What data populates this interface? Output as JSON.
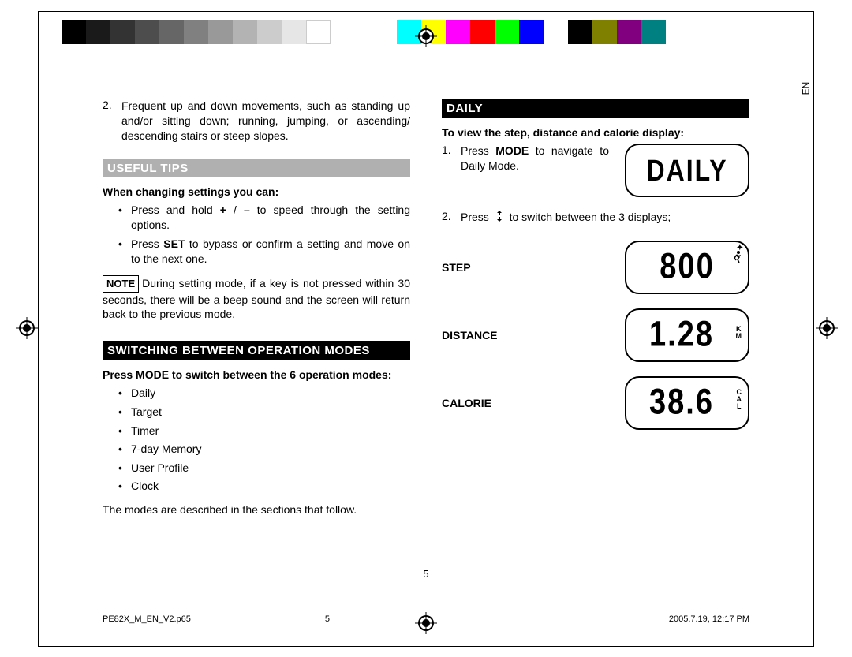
{
  "colorBar": {
    "leftGapWidth": 78,
    "swatchWidth": 31,
    "midGapWidth": 84,
    "rightFillColor": "#ffffff",
    "leftColors": [
      "#000000",
      "#1a1a1a",
      "#333333",
      "#4d4d4d",
      "#666666",
      "#808080",
      "#999999",
      "#b3b3b3",
      "#cccccc",
      "#e6e6e6",
      "#ffffff"
    ],
    "rightColors": [
      "#00ffff",
      "#ffff00",
      "#ff00ff",
      "#ff0000",
      "#00ff00",
      "#0000ff",
      "#ffffff",
      "#000000",
      "#808000",
      "#800080",
      "#008080"
    ]
  },
  "langLabel": "EN",
  "leftColumn": {
    "item2": {
      "num": "2.",
      "text": "Frequent up and down movements, such as standing up and/or sitting down; running, jumping, or ascending/ descending stairs or steep slopes."
    },
    "usefulTips": {
      "header": "USEFUL TIPS",
      "subhead": "When changing settings you can:",
      "bullets": [
        "Press and hold + / – to speed through the setting options.",
        "Press SET to bypass or confirm a setting and move on to the next one."
      ],
      "noteLabel": "NOTE",
      "noteText": "During setting mode, if a key is not pressed within 30 seconds, there will be a beep sound and the screen will return back to the previous mode."
    },
    "switching": {
      "header": "SWITCHING BETWEEN OPERATION MODES",
      "subhead": "Press MODE to switch between the 6 operation modes:",
      "modes": [
        "Daily",
        "Target",
        "Timer",
        "7-day Memory",
        "User Profile",
        "Clock"
      ],
      "tail": "The modes are described in the sections that follow."
    }
  },
  "rightColumn": {
    "daily": {
      "header": "DAILY",
      "subhead": "To view the step, distance and calorie display:",
      "step1": {
        "num": "1.",
        "pre": "Press ",
        "bold": "MODE",
        "post": " to navigate to Daily Mode."
      },
      "step2": {
        "num": "2.",
        "pre": "Press ",
        "post": " to switch between the 3 displays;"
      },
      "lcdDaily": "DAILY",
      "rows": [
        {
          "label": "STEP",
          "value": "800",
          "suffixTop": "",
          "suffixMid": "",
          "runner": true
        },
        {
          "label": "DISTANCE",
          "value": "1.28",
          "suffixTop": "K",
          "suffixMid": "M",
          "runner": false
        },
        {
          "label": "CALORIE",
          "value": "38.6",
          "suffixTop": "C",
          "suffixMid": "A",
          "suffixBot": "L",
          "runner": false
        }
      ]
    }
  },
  "pageNumber": "5",
  "footer": {
    "file": "PE82X_M_EN_V2.p65",
    "pg": "5",
    "date": "2005.7.19, 12:17 PM"
  }
}
